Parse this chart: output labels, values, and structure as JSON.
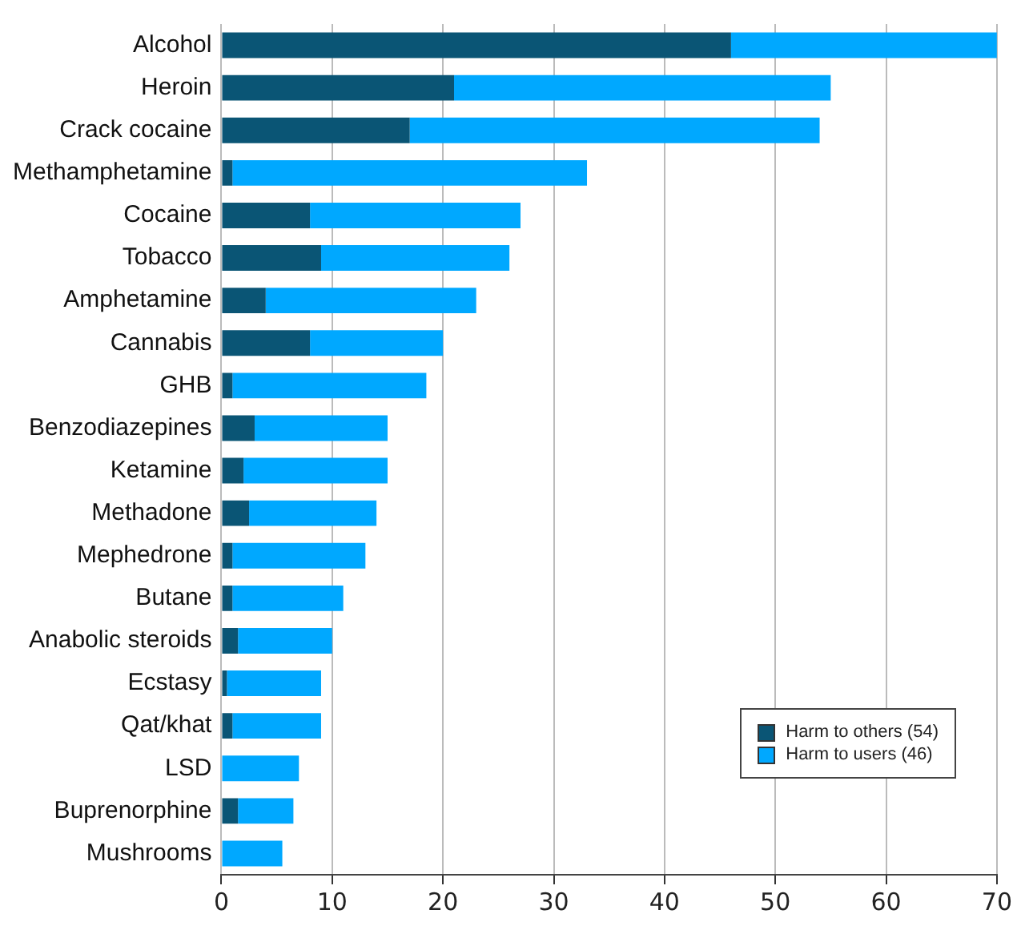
{
  "chart_data": {
    "type": "bar",
    "orientation": "horizontal",
    "stacked": true,
    "categories": [
      "Alcohol",
      "Heroin",
      "Crack cocaine",
      "Methamphetamine",
      "Cocaine",
      "Tobacco",
      "Amphetamine",
      "Cannabis",
      "GHB",
      "Benzodiazepines",
      "Ketamine",
      "Methadone",
      "Mephedrone",
      "Butane",
      "Anabolic steroids",
      "Ecstasy",
      "Qat/khat",
      "LSD",
      "Buprenorphine",
      "Mushrooms"
    ],
    "series": [
      {
        "name": "Harm to others (54)",
        "color": "#0a5575",
        "values": [
          46,
          21,
          17,
          1,
          8,
          9,
          4,
          8,
          1,
          3,
          2,
          2.5,
          1,
          1,
          1.5,
          0.5,
          1,
          0,
          1.5,
          0
        ]
      },
      {
        "name": "Harm to users (46)",
        "color": "#00a8ff",
        "values": [
          24,
          34,
          37,
          32,
          19,
          17,
          19,
          12,
          17.5,
          12,
          13,
          11.5,
          12,
          10,
          8.5,
          8.5,
          8,
          7,
          5,
          5.5
        ]
      }
    ],
    "xlim": [
      0,
      70
    ],
    "xticks": [
      0,
      10,
      20,
      30,
      40,
      50,
      60,
      70
    ],
    "grid": "x",
    "legend": "bottom right"
  }
}
